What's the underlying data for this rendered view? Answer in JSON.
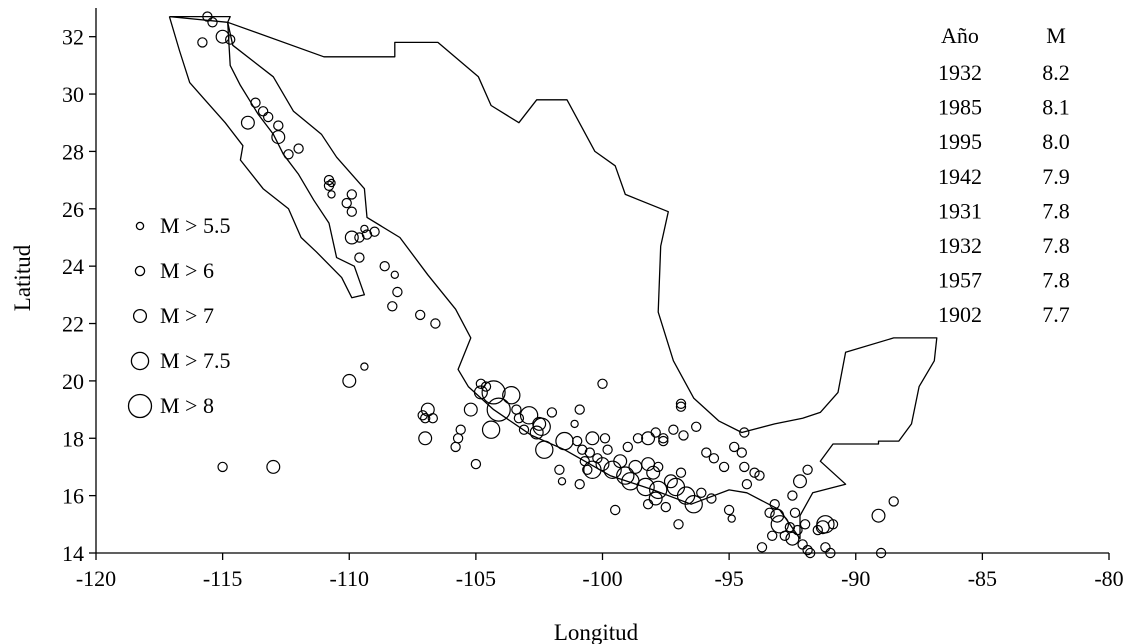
{
  "chart_data": {
    "type": "scatter",
    "xlabel": "Longitud",
    "ylabel": "Latitud",
    "xlim": [
      -120,
      -80
    ],
    "ylim": [
      14,
      33
    ],
    "x_ticks": [
      -120,
      -115,
      -110,
      -105,
      -100,
      -95,
      -90,
      -85,
      -80
    ],
    "y_ticks": [
      14,
      16,
      18,
      20,
      22,
      24,
      26,
      28,
      30,
      32
    ],
    "grid": false,
    "legend_placement": "left",
    "legend": [
      {
        "label": "M > 5.5",
        "size_class": 5.5
      },
      {
        "label": "M > 6",
        "size_class": 6
      },
      {
        "label": "M > 7",
        "size_class": 7
      },
      {
        "label": "M > 7.5",
        "size_class": 7.5
      },
      {
        "label": "M > 8",
        "size_class": 8
      }
    ],
    "table": {
      "headers": [
        "Año",
        "M"
      ],
      "rows": [
        [
          "1932",
          "8.2"
        ],
        [
          "1985",
          "8.1"
        ],
        [
          "1995",
          "8.0"
        ],
        [
          "1942",
          "7.9"
        ],
        [
          "1931",
          "7.8"
        ],
        [
          "1932",
          "7.8"
        ],
        [
          "1957",
          "7.8"
        ],
        [
          "1902",
          "7.7"
        ]
      ]
    },
    "outline_mainland": [
      [
        -117.1,
        32.7
      ],
      [
        -114.7,
        32.7
      ],
      [
        -114.8,
        32.5
      ],
      [
        -111.0,
        31.3
      ],
      [
        -108.2,
        31.3
      ],
      [
        -108.2,
        31.8
      ],
      [
        -106.5,
        31.8
      ],
      [
        -104.9,
        30.6
      ],
      [
        -104.4,
        29.6
      ],
      [
        -103.3,
        29.0
      ],
      [
        -102.6,
        29.8
      ],
      [
        -101.4,
        29.8
      ],
      [
        -100.3,
        28.0
      ],
      [
        -99.5,
        27.5
      ],
      [
        -99.1,
        26.5
      ],
      [
        -97.4,
        25.9
      ],
      [
        -97.7,
        24.7
      ],
      [
        -97.8,
        22.4
      ],
      [
        -97.2,
        20.7
      ],
      [
        -96.4,
        19.4
      ],
      [
        -95.4,
        18.6
      ],
      [
        -94.5,
        18.2
      ],
      [
        -93.2,
        18.5
      ],
      [
        -92.1,
        18.7
      ],
      [
        -91.4,
        18.9
      ],
      [
        -90.7,
        19.6
      ],
      [
        -90.4,
        21.0
      ],
      [
        -88.5,
        21.5
      ],
      [
        -86.8,
        21.5
      ],
      [
        -86.9,
        20.7
      ],
      [
        -87.5,
        19.8
      ],
      [
        -87.8,
        18.5
      ],
      [
        -88.3,
        17.9
      ],
      [
        -89.1,
        17.9
      ],
      [
        -89.1,
        17.8
      ],
      [
        -90.9,
        17.8
      ],
      [
        -91.4,
        17.2
      ],
      [
        -90.4,
        16.4
      ],
      [
        -91.7,
        16.1
      ],
      [
        -92.2,
        15.3
      ],
      [
        -92.2,
        14.5
      ],
      [
        -93.0,
        15.5
      ],
      [
        -94.3,
        16.1
      ],
      [
        -95.0,
        16.2
      ],
      [
        -96.5,
        15.7
      ],
      [
        -98.0,
        16.2
      ],
      [
        -99.7,
        16.7
      ],
      [
        -101.5,
        17.6
      ],
      [
        -102.8,
        18.1
      ],
      [
        -104.3,
        19.0
      ],
      [
        -105.3,
        19.8
      ],
      [
        -105.7,
        20.4
      ],
      [
        -105.2,
        21.5
      ],
      [
        -105.8,
        22.5
      ],
      [
        -106.9,
        23.7
      ],
      [
        -108.0,
        25.0
      ],
      [
        -109.3,
        25.7
      ],
      [
        -109.4,
        26.7
      ],
      [
        -110.5,
        27.8
      ],
      [
        -111.1,
        28.6
      ],
      [
        -112.2,
        29.4
      ],
      [
        -113.0,
        30.6
      ],
      [
        -114.6,
        31.7
      ],
      [
        -114.8,
        32.5
      ],
      [
        -117.1,
        32.7
      ]
    ],
    "outline_baja": [
      [
        -117.1,
        32.7
      ],
      [
        -116.7,
        31.5
      ],
      [
        -116.3,
        30.4
      ],
      [
        -115.7,
        29.8
      ],
      [
        -114.9,
        29.0
      ],
      [
        -114.2,
        28.2
      ],
      [
        -114.3,
        27.7
      ],
      [
        -113.4,
        26.7
      ],
      [
        -112.4,
        26.0
      ],
      [
        -111.9,
        25.0
      ],
      [
        -111.3,
        24.5
      ],
      [
        -110.3,
        23.6
      ],
      [
        -109.9,
        22.9
      ],
      [
        -109.4,
        23.0
      ],
      [
        -109.8,
        24.0
      ],
      [
        -110.5,
        24.3
      ],
      [
        -110.8,
        25.5
      ],
      [
        -111.4,
        26.3
      ],
      [
        -112.0,
        27.2
      ],
      [
        -112.6,
        27.9
      ],
      [
        -113.0,
        28.6
      ],
      [
        -113.6,
        29.3
      ],
      [
        -114.3,
        30.3
      ],
      [
        -114.7,
        31.0
      ],
      [
        -114.8,
        32.5
      ]
    ],
    "points": [
      {
        "x": -115.6,
        "y": 32.7,
        "m": 6
      },
      {
        "x": -115.4,
        "y": 32.5,
        "m": 6
      },
      {
        "x": -115.0,
        "y": 32.0,
        "m": 7
      },
      {
        "x": -114.7,
        "y": 31.9,
        "m": 6
      },
      {
        "x": -115.8,
        "y": 31.8,
        "m": 6
      },
      {
        "x": -113.7,
        "y": 29.7,
        "m": 6
      },
      {
        "x": -113.4,
        "y": 29.4,
        "m": 6
      },
      {
        "x": -113.2,
        "y": 29.2,
        "m": 6
      },
      {
        "x": -114.0,
        "y": 29.0,
        "m": 7
      },
      {
        "x": -112.8,
        "y": 28.9,
        "m": 6
      },
      {
        "x": -112.8,
        "y": 28.5,
        "m": 7
      },
      {
        "x": -112.4,
        "y": 27.9,
        "m": 6
      },
      {
        "x": -112.0,
        "y": 28.1,
        "m": 6
      },
      {
        "x": -110.8,
        "y": 27.0,
        "m": 6
      },
      {
        "x": -110.8,
        "y": 26.8,
        "m": 6
      },
      {
        "x": -110.7,
        "y": 26.9,
        "m": 5.5
      },
      {
        "x": -110.7,
        "y": 26.5,
        "m": 5.5
      },
      {
        "x": -110.1,
        "y": 26.2,
        "m": 6
      },
      {
        "x": -109.9,
        "y": 26.5,
        "m": 6
      },
      {
        "x": -109.9,
        "y": 25.9,
        "m": 6
      },
      {
        "x": -109.4,
        "y": 25.3,
        "m": 5.5
      },
      {
        "x": -109.6,
        "y": 25.0,
        "m": 6
      },
      {
        "x": -109.9,
        "y": 25.0,
        "m": 7
      },
      {
        "x": -109.3,
        "y": 25.1,
        "m": 6
      },
      {
        "x": -109.0,
        "y": 25.2,
        "m": 6
      },
      {
        "x": -109.6,
        "y": 24.3,
        "m": 6
      },
      {
        "x": -108.6,
        "y": 24.0,
        "m": 6
      },
      {
        "x": -108.2,
        "y": 23.7,
        "m": 5.5
      },
      {
        "x": -108.1,
        "y": 23.1,
        "m": 6
      },
      {
        "x": -108.3,
        "y": 22.6,
        "m": 6
      },
      {
        "x": -107.2,
        "y": 22.3,
        "m": 6
      },
      {
        "x": -106.6,
        "y": 22.0,
        "m": 6
      },
      {
        "x": -109.4,
        "y": 20.5,
        "m": 5.5
      },
      {
        "x": -110.0,
        "y": 20.0,
        "m": 7
      },
      {
        "x": -115.0,
        "y": 17.0,
        "m": 6
      },
      {
        "x": -113.0,
        "y": 17.0,
        "m": 7
      },
      {
        "x": -107.1,
        "y": 18.8,
        "m": 6
      },
      {
        "x": -107.0,
        "y": 18.7,
        "m": 6
      },
      {
        "x": -106.9,
        "y": 19.0,
        "m": 7
      },
      {
        "x": -106.7,
        "y": 18.7,
        "m": 6
      },
      {
        "x": -107.0,
        "y": 18.0,
        "m": 7
      },
      {
        "x": -105.7,
        "y": 18.0,
        "m": 6
      },
      {
        "x": -105.8,
        "y": 17.7,
        "m": 6
      },
      {
        "x": -105.6,
        "y": 18.3,
        "m": 6
      },
      {
        "x": -105.0,
        "y": 17.1,
        "m": 6
      },
      {
        "x": -105.2,
        "y": 19.0,
        "m": 7
      },
      {
        "x": -104.8,
        "y": 19.9,
        "m": 6
      },
      {
        "x": -104.6,
        "y": 19.8,
        "m": 6
      },
      {
        "x": -104.8,
        "y": 19.6,
        "m": 7
      },
      {
        "x": -104.3,
        "y": 19.6,
        "m": 8
      },
      {
        "x": -104.1,
        "y": 19.0,
        "m": 8
      },
      {
        "x": -104.4,
        "y": 18.3,
        "m": 7.5
      },
      {
        "x": -103.6,
        "y": 19.5,
        "m": 7.5
      },
      {
        "x": -103.4,
        "y": 19.0,
        "m": 6
      },
      {
        "x": -103.3,
        "y": 18.7,
        "m": 6
      },
      {
        "x": -103.1,
        "y": 18.3,
        "m": 6
      },
      {
        "x": -102.9,
        "y": 18.8,
        "m": 7.5
      },
      {
        "x": -102.5,
        "y": 18.5,
        "m": 7
      },
      {
        "x": -102.6,
        "y": 18.2,
        "m": 7
      },
      {
        "x": -102.4,
        "y": 18.4,
        "m": 7.5
      },
      {
        "x": -102.0,
        "y": 18.9,
        "m": 6
      },
      {
        "x": -102.3,
        "y": 17.6,
        "m": 7.5
      },
      {
        "x": -101.5,
        "y": 17.9,
        "m": 7.5
      },
      {
        "x": -101.1,
        "y": 18.5,
        "m": 5.5
      },
      {
        "x": -101.0,
        "y": 17.9,
        "m": 6
      },
      {
        "x": -100.8,
        "y": 17.6,
        "m": 6
      },
      {
        "x": -100.5,
        "y": 17.5,
        "m": 6
      },
      {
        "x": -100.7,
        "y": 17.2,
        "m": 6
      },
      {
        "x": -100.4,
        "y": 18.0,
        "m": 7
      },
      {
        "x": -100.2,
        "y": 17.3,
        "m": 6
      },
      {
        "x": -101.7,
        "y": 16.9,
        "m": 6
      },
      {
        "x": -101.6,
        "y": 16.5,
        "m": 5.5
      },
      {
        "x": -100.9,
        "y": 16.4,
        "m": 6
      },
      {
        "x": -100.6,
        "y": 16.9,
        "m": 6
      },
      {
        "x": -100.4,
        "y": 16.9,
        "m": 7.5
      },
      {
        "x": -100.0,
        "y": 17.1,
        "m": 7
      },
      {
        "x": -99.8,
        "y": 17.6,
        "m": 6
      },
      {
        "x": -99.9,
        "y": 18.0,
        "m": 6
      },
      {
        "x": -100.9,
        "y": 19.0,
        "m": 6
      },
      {
        "x": -100.0,
        "y": 19.9,
        "m": 6
      },
      {
        "x": -99.6,
        "y": 16.9,
        "m": 7.5
      },
      {
        "x": -99.3,
        "y": 17.2,
        "m": 7
      },
      {
        "x": -99.1,
        "y": 16.7,
        "m": 7.5
      },
      {
        "x": -98.9,
        "y": 16.5,
        "m": 7.5
      },
      {
        "x": -98.7,
        "y": 17.0,
        "m": 7
      },
      {
        "x": -99.0,
        "y": 17.7,
        "m": 6
      },
      {
        "x": -98.6,
        "y": 18.0,
        "m": 6
      },
      {
        "x": -99.5,
        "y": 15.5,
        "m": 6
      },
      {
        "x": -98.3,
        "y": 16.3,
        "m": 7.5
      },
      {
        "x": -98.0,
        "y": 16.8,
        "m": 7
      },
      {
        "x": -98.2,
        "y": 17.1,
        "m": 7
      },
      {
        "x": -97.8,
        "y": 17.0,
        "m": 6
      },
      {
        "x": -97.8,
        "y": 16.2,
        "m": 7.5
      },
      {
        "x": -98.2,
        "y": 15.7,
        "m": 6
      },
      {
        "x": -97.9,
        "y": 15.9,
        "m": 7
      },
      {
        "x": -97.5,
        "y": 15.6,
        "m": 6
      },
      {
        "x": -97.3,
        "y": 16.5,
        "m": 7
      },
      {
        "x": -97.1,
        "y": 16.3,
        "m": 7.5
      },
      {
        "x": -96.9,
        "y": 16.8,
        "m": 6
      },
      {
        "x": -96.7,
        "y": 16.0,
        "m": 7.5
      },
      {
        "x": -96.4,
        "y": 15.7,
        "m": 7.5
      },
      {
        "x": -96.1,
        "y": 16.1,
        "m": 6
      },
      {
        "x": -95.7,
        "y": 15.9,
        "m": 6
      },
      {
        "x": -97.0,
        "y": 15.0,
        "m": 6
      },
      {
        "x": -95.0,
        "y": 15.5,
        "m": 6
      },
      {
        "x": -94.9,
        "y": 15.2,
        "m": 5.5
      },
      {
        "x": -98.2,
        "y": 18.0,
        "m": 7
      },
      {
        "x": -97.9,
        "y": 18.2,
        "m": 6
      },
      {
        "x": -97.6,
        "y": 17.9,
        "m": 6
      },
      {
        "x": -97.2,
        "y": 18.3,
        "m": 6
      },
      {
        "x": -96.8,
        "y": 18.1,
        "m": 6
      },
      {
        "x": -96.3,
        "y": 18.4,
        "m": 6
      },
      {
        "x": -96.9,
        "y": 19.1,
        "m": 6
      },
      {
        "x": -96.9,
        "y": 19.2,
        "m": 6
      },
      {
        "x": -97.6,
        "y": 18.0,
        "m": 6
      },
      {
        "x": -95.6,
        "y": 17.3,
        "m": 6
      },
      {
        "x": -95.2,
        "y": 17.0,
        "m": 6
      },
      {
        "x": -95.9,
        "y": 17.5,
        "m": 6
      },
      {
        "x": -94.8,
        "y": 17.7,
        "m": 6
      },
      {
        "x": -94.5,
        "y": 17.5,
        "m": 6
      },
      {
        "x": -94.4,
        "y": 17.0,
        "m": 6
      },
      {
        "x": -94.0,
        "y": 16.8,
        "m": 6
      },
      {
        "x": -93.8,
        "y": 16.7,
        "m": 6
      },
      {
        "x": -94.3,
        "y": 16.4,
        "m": 6
      },
      {
        "x": -94.4,
        "y": 18.2,
        "m": 6
      },
      {
        "x": -93.4,
        "y": 15.4,
        "m": 6
      },
      {
        "x": -93.1,
        "y": 15.3,
        "m": 7
      },
      {
        "x": -93.0,
        "y": 15.0,
        "m": 7.5
      },
      {
        "x": -92.8,
        "y": 14.6,
        "m": 6
      },
      {
        "x": -92.6,
        "y": 14.9,
        "m": 6
      },
      {
        "x": -92.3,
        "y": 14.8,
        "m": 6
      },
      {
        "x": -92.5,
        "y": 14.5,
        "m": 7
      },
      {
        "x": -92.4,
        "y": 15.4,
        "m": 6
      },
      {
        "x": -92.0,
        "y": 15.0,
        "m": 6
      },
      {
        "x": -92.5,
        "y": 16.0,
        "m": 6
      },
      {
        "x": -92.2,
        "y": 16.5,
        "m": 7
      },
      {
        "x": -91.9,
        "y": 16.9,
        "m": 6
      },
      {
        "x": -92.1,
        "y": 14.3,
        "m": 6
      },
      {
        "x": -91.9,
        "y": 14.1,
        "m": 6
      },
      {
        "x": -91.8,
        "y": 14.0,
        "m": 6
      },
      {
        "x": -91.5,
        "y": 14.8,
        "m": 6
      },
      {
        "x": -91.3,
        "y": 14.9,
        "m": 7
      },
      {
        "x": -91.2,
        "y": 15.0,
        "m": 7.5
      },
      {
        "x": -90.9,
        "y": 15.0,
        "m": 6
      },
      {
        "x": -91.2,
        "y": 14.2,
        "m": 6
      },
      {
        "x": -91.0,
        "y": 14.0,
        "m": 6
      },
      {
        "x": -93.7,
        "y": 14.2,
        "m": 6
      },
      {
        "x": -93.3,
        "y": 14.6,
        "m": 6
      },
      {
        "x": -93.2,
        "y": 15.7,
        "m": 6
      },
      {
        "x": -89.1,
        "y": 15.3,
        "m": 7
      },
      {
        "x": -88.5,
        "y": 15.8,
        "m": 6
      },
      {
        "x": -89.0,
        "y": 14.0,
        "m": 6
      }
    ]
  }
}
